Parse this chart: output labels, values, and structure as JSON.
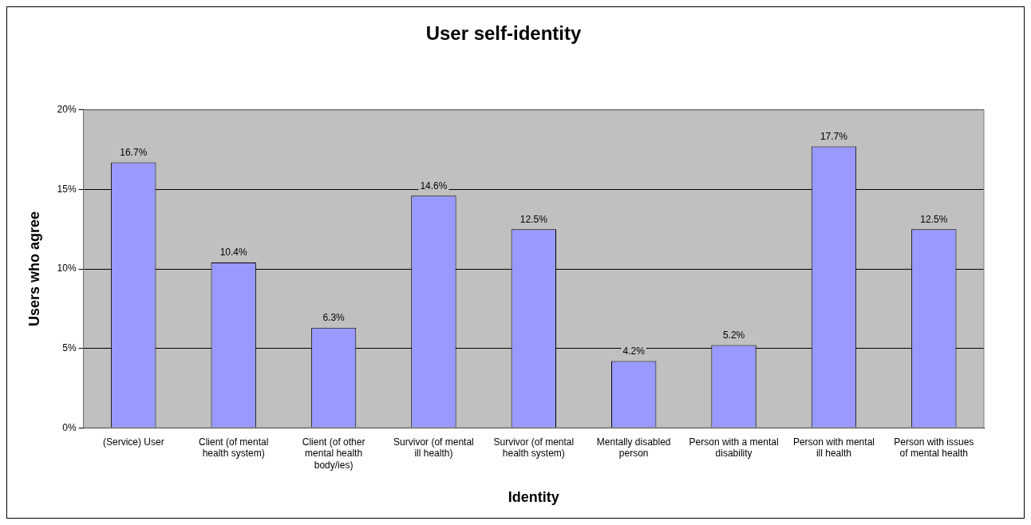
{
  "chart_data": {
    "type": "bar",
    "title": "User self-identity",
    "xlabel": "Identity",
    "ylabel": "Users who agree",
    "categories": [
      "(Service) User",
      "Client (of mental health system)",
      "Client (of other mental health body/ies)",
      "Survivor (of mental ill health)",
      "Survivor (of mental health system)",
      "Mentally disabled person",
      "Person with a mental disability",
      "Person with mental ill health",
      "Person with issues of mental health"
    ],
    "values": [
      16.7,
      10.4,
      6.3,
      14.6,
      12.5,
      4.2,
      5.2,
      17.7,
      12.5
    ],
    "value_labels": [
      "16.7%",
      "10.4%",
      "6.3%",
      "14.6%",
      "12.5%",
      "4.2%",
      "5.2%",
      "17.7%",
      "12.5%"
    ],
    "color": "#9999ff",
    "ylim": [
      0,
      20
    ],
    "yticks": [
      {
        "value": 0,
        "label": "0%"
      },
      {
        "value": 5,
        "label": "5%"
      },
      {
        "value": 10,
        "label": "10%"
      },
      {
        "value": 15,
        "label": "15%"
      },
      {
        "value": 20,
        "label": "20%"
      }
    ],
    "grid": "y",
    "legend": false
  }
}
